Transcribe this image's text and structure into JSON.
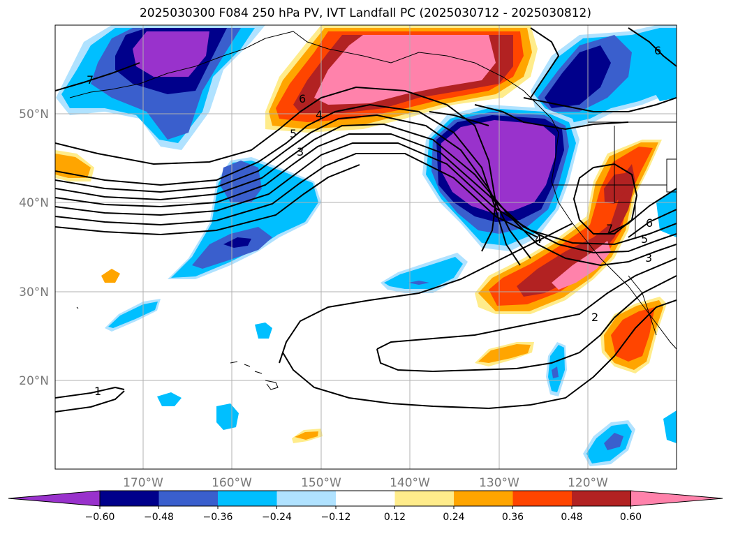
{
  "title": "2025030300 F084 250 hPa PV, IVT Landfall PC (2025030712 - 2025030812)",
  "lon_labels": [
    "170°W",
    "160°W",
    "150°W",
    "140°W",
    "130°W",
    "120°W"
  ],
  "lat_labels": [
    "50°N",
    "40°N",
    "30°N",
    "20°N"
  ],
  "colorbar": {
    "ticks": [
      "−0.60",
      "−0.48",
      "−0.36",
      "−0.24",
      "−0.12",
      "0.12",
      "0.24",
      "0.36",
      "0.48",
      "0.60"
    ],
    "colors": [
      "#9932cc",
      "#00008b",
      "#3a5fcd",
      "#00bfff",
      "#b0e2ff",
      "#ffffff",
      "#ffec8b",
      "#ffa500",
      "#ff4500",
      "#b22222",
      "#ff82ab"
    ]
  },
  "contour_labels": [
    "7",
    "6",
    "5",
    "4",
    "3",
    "1",
    "4",
    "7",
    "6",
    "5",
    "3",
    "2",
    "6"
  ],
  "colors": {
    "axis_frame": "#000000",
    "grid": "#b0b0b0",
    "tick_label": "#777777"
  }
}
